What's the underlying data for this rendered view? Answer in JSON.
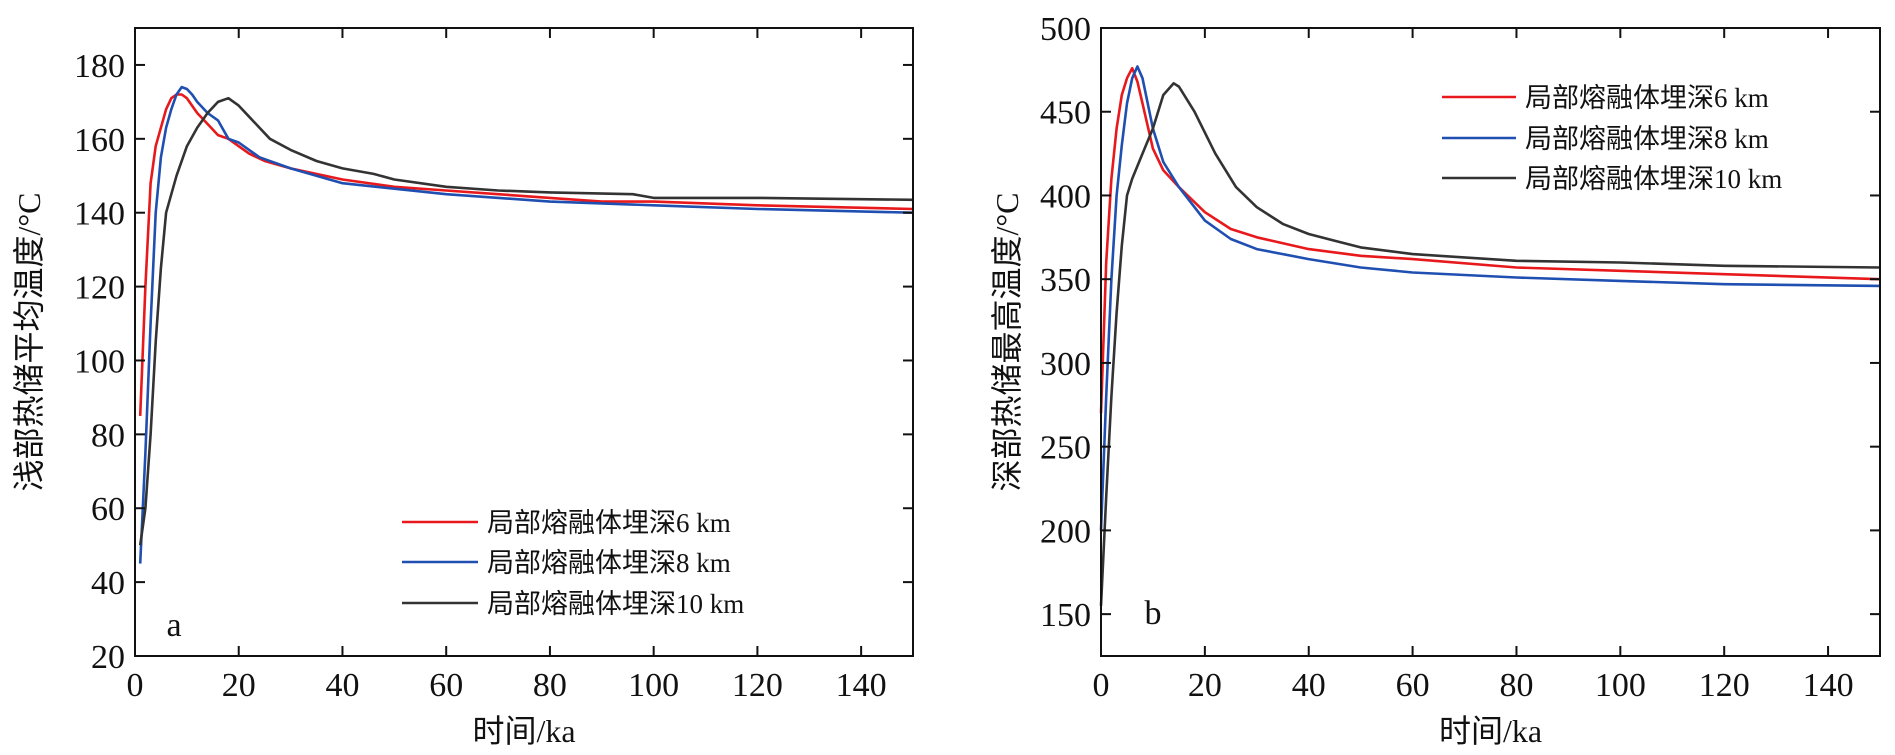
{
  "colors": {
    "red": "#e8191c",
    "blue": "#1f4fb0",
    "black": "#333333",
    "axis": "#111111"
  },
  "chart_data": [
    {
      "type": "line",
      "panel_label": "a",
      "xlabel": "时间/ka",
      "ylabel": "浅部热储平均温度/°C",
      "xlim": [
        0,
        150
      ],
      "ylim": [
        20,
        190
      ],
      "xticks": [
        0,
        20,
        40,
        60,
        80,
        100,
        120,
        140
      ],
      "yticks": [
        20,
        40,
        60,
        80,
        100,
        120,
        140,
        160,
        180
      ],
      "grid": false,
      "legend_position": "bottom-right",
      "series": [
        {
          "name": "局部熔融体埋深6 km",
          "color": "red",
          "x": [
            1,
            2,
            3,
            4,
            5,
            6,
            7,
            8,
            9,
            10,
            12,
            14,
            16,
            18,
            20,
            22,
            25,
            30,
            40,
            50,
            60,
            70,
            80,
            90,
            100,
            120,
            150
          ],
          "y": [
            85,
            120,
            148,
            158,
            163,
            168,
            171,
            172,
            172,
            171,
            167,
            164,
            161,
            160,
            158,
            156,
            154,
            152,
            149,
            147,
            146,
            145,
            144,
            143,
            143,
            142,
            141
          ]
        },
        {
          "name": "局部熔融体埋深8 km",
          "color": "blue",
          "x": [
            1,
            2,
            3,
            4,
            5,
            6,
            7,
            8,
            9,
            10,
            11,
            12,
            14,
            16,
            18,
            20,
            22,
            24,
            30,
            40,
            50,
            60,
            80,
            100,
            120,
            150
          ],
          "y": [
            45,
            75,
            110,
            140,
            155,
            163,
            168,
            172,
            174,
            173.5,
            172,
            170,
            167,
            165,
            160,
            159,
            157,
            155,
            152,
            148,
            146.5,
            145,
            143,
            142,
            141,
            140
          ]
        },
        {
          "name": "局部熔融体埋深10 km",
          "color": "black",
          "x": [
            1,
            2,
            3,
            4,
            5,
            6,
            8,
            10,
            12,
            14,
            16,
            18,
            20,
            22,
            26,
            30,
            35,
            40,
            46,
            50,
            60,
            70,
            80,
            96,
            100,
            120,
            150
          ],
          "y": [
            50,
            60,
            80,
            105,
            125,
            140,
            150,
            158,
            163,
            167,
            170,
            171,
            169,
            166,
            160,
            157,
            154,
            152,
            150.5,
            149,
            147,
            146,
            145.5,
            145,
            144,
            144,
            143.5
          ]
        }
      ]
    },
    {
      "type": "line",
      "panel_label": "b",
      "xlabel": "时间/ka",
      "ylabel": "深部热储最高温度/°C",
      "xlim": [
        0,
        150
      ],
      "ylim": [
        125,
        500
      ],
      "xticks": [
        0,
        20,
        40,
        60,
        80,
        100,
        120,
        140
      ],
      "yticks": [
        150,
        200,
        250,
        300,
        350,
        400,
        450,
        500
      ],
      "grid": false,
      "legend_position": "top-right",
      "series": [
        {
          "name": "局部熔融体埋深6 km",
          "color": "red",
          "x": [
            0,
            1,
            2,
            3,
            4,
            5,
            6,
            7,
            8,
            10,
            12,
            15,
            20,
            25,
            30,
            40,
            50,
            60,
            80,
            100,
            120,
            150
          ],
          "y": [
            270,
            360,
            410,
            440,
            460,
            470,
            476,
            468,
            455,
            428,
            415,
            405,
            390,
            380,
            375,
            368,
            364,
            362,
            357,
            355,
            353,
            350
          ]
        },
        {
          "name": "局部熔融体埋深8 km",
          "color": "blue",
          "x": [
            0,
            1,
            2,
            3,
            4,
            5,
            6,
            7,
            8,
            10,
            12,
            15,
            20,
            25,
            30,
            40,
            50,
            60,
            80,
            100,
            120,
            150
          ],
          "y": [
            200,
            280,
            350,
            400,
            430,
            455,
            470,
            477,
            470,
            440,
            420,
            405,
            385,
            374,
            368,
            362,
            357,
            354,
            351,
            349,
            347,
            346
          ]
        },
        {
          "name": "局部熔融体埋深10 km",
          "color": "black",
          "x": [
            0,
            1,
            2,
            3,
            4,
            5,
            6,
            8,
            10,
            12,
            14,
            15,
            18,
            22,
            26,
            30,
            35,
            40,
            45,
            50,
            60,
            80,
            100,
            120,
            150
          ],
          "y": [
            155,
            220,
            280,
            330,
            370,
            400,
            410,
            425,
            440,
            460,
            467,
            465,
            450,
            425,
            405,
            393,
            383,
            377,
            373,
            369,
            365,
            361,
            360,
            358,
            357
          ]
        }
      ]
    }
  ]
}
